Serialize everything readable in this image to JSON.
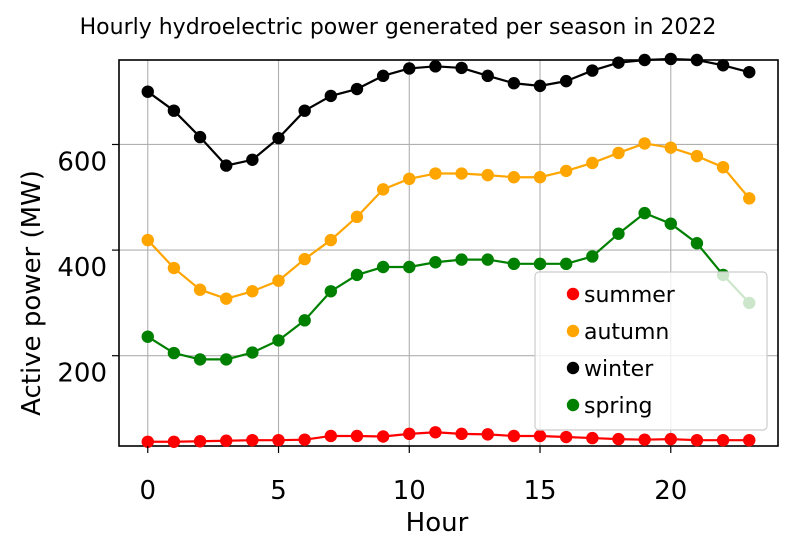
{
  "chart_data": {
    "type": "line",
    "title": "Hourly hydroelectric power generated per season in 2022",
    "xlabel": "Hour",
    "ylabel": "Active power (MW)",
    "xlim": [
      -1.1,
      24.1
    ],
    "ylim": [
      29,
      760
    ],
    "xticks": [
      0,
      5,
      10,
      15,
      20
    ],
    "xtick_labels": [
      "0",
      "5",
      "10",
      "15",
      "20"
    ],
    "yticks": [
      200,
      400,
      600
    ],
    "ytick_labels": [
      "200",
      "400",
      "600"
    ],
    "grid": true,
    "legend_position": "lower-right",
    "x": [
      0,
      1,
      2,
      3,
      4,
      5,
      6,
      7,
      8,
      9,
      10,
      11,
      12,
      13,
      14,
      15,
      16,
      17,
      18,
      19,
      20,
      21,
      22,
      23
    ],
    "series": [
      {
        "name": "summer",
        "color": "#ff0000",
        "values": [
          37,
          37,
          38,
          39,
          40,
          40,
          41,
          48,
          48,
          47,
          52,
          55,
          52,
          51,
          48,
          48,
          46,
          44,
          42,
          41,
          42,
          40,
          40,
          40
        ]
      },
      {
        "name": "autumn",
        "color": "#ffa500",
        "values": [
          419,
          366,
          325,
          308,
          322,
          342,
          383,
          419,
          463,
          515,
          535,
          545,
          545,
          542,
          538,
          538,
          550,
          565,
          584,
          602,
          594,
          578,
          557,
          498
        ]
      },
      {
        "name": "winter",
        "color": "#000000",
        "values": [
          700,
          664,
          614,
          560,
          571,
          612,
          664,
          692,
          705,
          730,
          744,
          748,
          745,
          730,
          716,
          711,
          720,
          740,
          755,
          760,
          762,
          760,
          750,
          737
        ]
      },
      {
        "name": "spring",
        "color": "#008000",
        "values": [
          236,
          205,
          193,
          193,
          206,
          229,
          267,
          322,
          353,
          368,
          368,
          377,
          382,
          382,
          374,
          374,
          374,
          388,
          431,
          470,
          450,
          413,
          353,
          300
        ]
      }
    ]
  }
}
